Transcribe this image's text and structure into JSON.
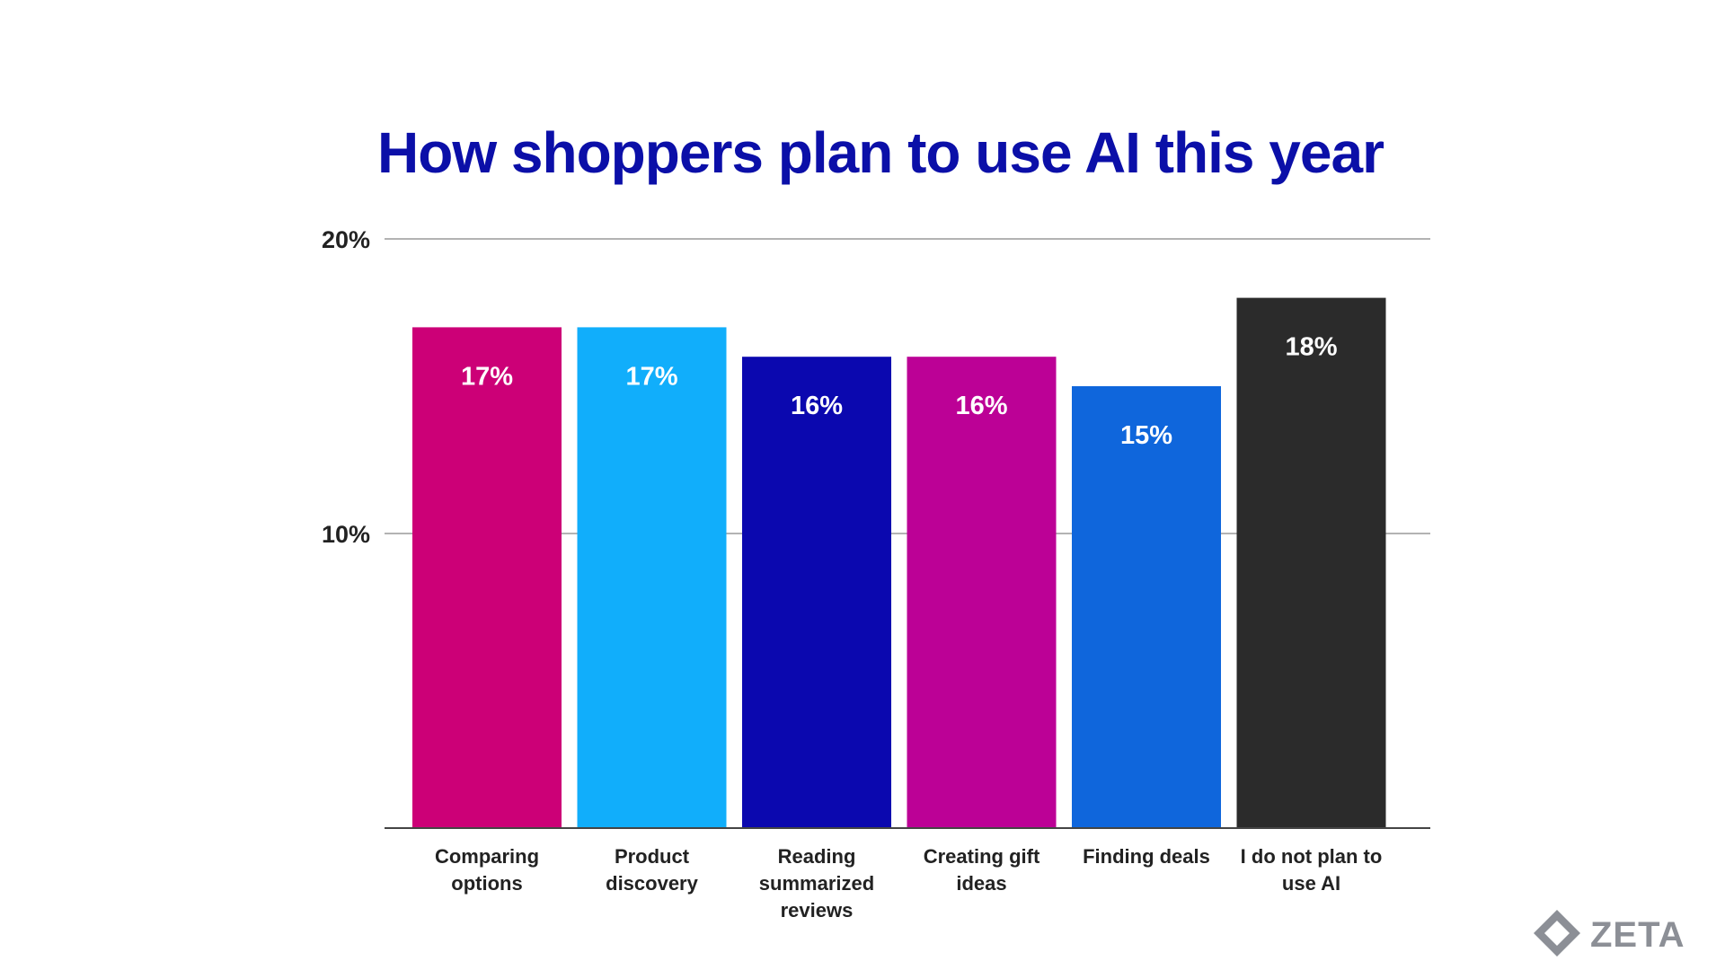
{
  "colors": {
    "title": "#0B0FA8",
    "axis_text": "#222222",
    "grid": "#9A9A9A",
    "axis": "#444444",
    "bar_label": "#FFFFFF",
    "logo": "#8C8F96"
  },
  "logo": {
    "text": "ZETA",
    "icon": "zeta-diamond-icon"
  },
  "chart_data": {
    "type": "bar",
    "title": "How shoppers plan to use AI this year",
    "xlabel": "",
    "ylabel": "",
    "ylim": [
      0,
      20
    ],
    "yticks": [
      10,
      20
    ],
    "ytick_labels": [
      "10%",
      "20%"
    ],
    "grid": true,
    "legend": "none",
    "categories": [
      [
        "Comparing",
        "options"
      ],
      [
        "Product",
        "discovery"
      ],
      [
        "Reading",
        "summarized",
        "reviews"
      ],
      [
        "Creating gift",
        "ideas"
      ],
      [
        "Finding deals"
      ],
      [
        "I do not plan to",
        "use AI"
      ]
    ],
    "values": [
      17,
      17,
      16,
      16,
      15,
      18
    ],
    "data_labels": [
      "17%",
      "17%",
      "16%",
      "16%",
      "15%",
      "18%"
    ],
    "bar_colors": [
      "#CC0077",
      "#11AEFB",
      "#0B08AF",
      "#BC0196",
      "#0F66DC",
      "#2B2B2B"
    ]
  }
}
